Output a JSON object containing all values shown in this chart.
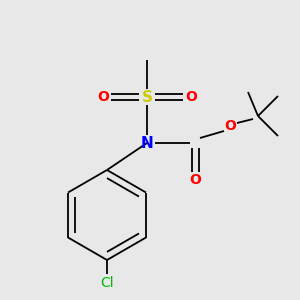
{
  "background_color": "#e8e8e8",
  "atom_colors": {
    "C": "#000000",
    "N": "#0000ff",
    "O": "#ff0000",
    "S": "#cccc00",
    "Cl": "#00bb00"
  },
  "bond_color": "#000000",
  "font_size": 10,
  "figsize": [
    3.0,
    3.0
  ],
  "dpi": 100
}
